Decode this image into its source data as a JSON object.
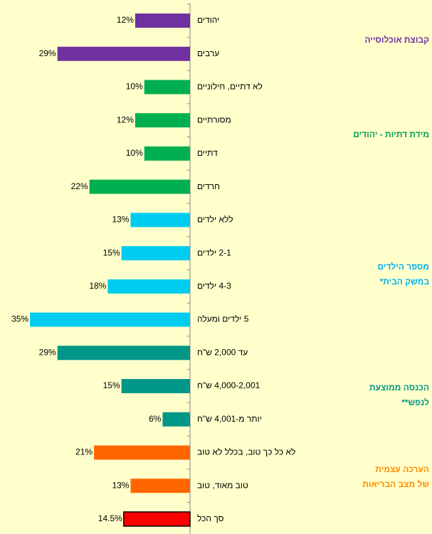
{
  "chart_data": {
    "type": "bar",
    "orientation": "horizontal",
    "categories": [
      "יהודים",
      "ערבים",
      "לא דתיים, חילוניים",
      "מסורתיים",
      "דתיים",
      "חרדים",
      "ללא ילדים",
      "2-1 ילדים",
      "4-3 ילדים",
      "5 ילדים ומעלה",
      "עד 2,000 ש\"ח",
      "4,000-2,001 ש\"ח",
      "יותר מ-4,001 ש\"ח",
      "לא כל כך טוב, בכלל לא טוב",
      "טוב מאוד, טוב",
      "סך הכל"
    ],
    "values": [
      12,
      29,
      10,
      12,
      10,
      22,
      13,
      15,
      18,
      35,
      29,
      15,
      6,
      21,
      13,
      14.5
    ],
    "value_labels": [
      "12%",
      "29%",
      "10%",
      "12%",
      "10%",
      "22%",
      "13%",
      "15%",
      "18%",
      "35%",
      "29%",
      "15%",
      "6%",
      "21%",
      "13%",
      "14.5%"
    ],
    "colors": [
      "#7030a0",
      "#7030a0",
      "#00b050",
      "#00b050",
      "#00b050",
      "#00b050",
      "#00ccf0",
      "#00ccf0",
      "#00ccf0",
      "#00ccf0",
      "#009688",
      "#009688",
      "#009688",
      "#ff6600",
      "#ff6600",
      "#ff0000"
    ],
    "edgecolors": [
      null,
      null,
      null,
      null,
      null,
      null,
      null,
      null,
      null,
      null,
      null,
      null,
      null,
      null,
      null,
      "#000000"
    ],
    "xlim": [
      0,
      40
    ],
    "groups": [
      {
        "lines": [
          "קבוצת  אוכלוסייה"
        ],
        "color": "#7030a0"
      },
      {
        "lines": [
          "מידת דתיות - יהודים"
        ],
        "color": "#00a050"
      },
      {
        "lines": [
          "מספר הילדים",
          "במשק הבית*"
        ],
        "color": "#00b0f0"
      },
      {
        "lines": [
          "הכנסה ממוצעת",
          "לנפש**"
        ],
        "color": "#009688"
      },
      {
        "lines": [
          "הערכה עצמית",
          "של מצב הבריאות"
        ],
        "color": "#ff8c00"
      }
    ]
  }
}
